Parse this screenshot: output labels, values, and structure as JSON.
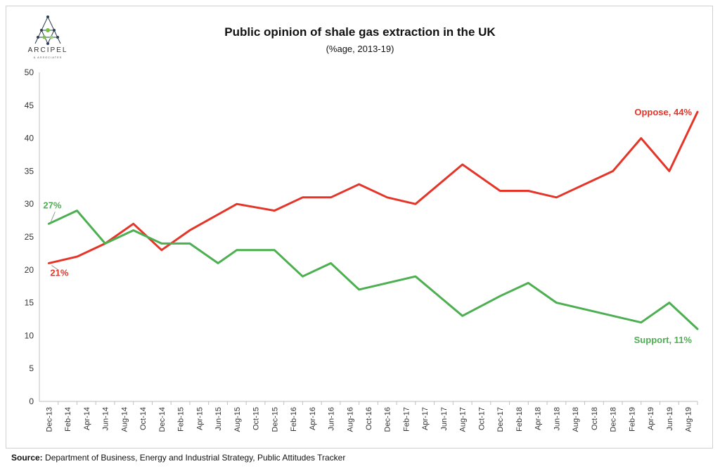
{
  "header": {
    "logo_name": "ARCIPEL",
    "logo_sub": "& ASSOCIATES"
  },
  "chart_data": {
    "type": "line",
    "title": "Public opinion of shale gas extraction in the UK",
    "subtitle": "(%age, 2013-19)",
    "xlabel": "",
    "ylabel": "",
    "ylim": [
      0,
      50
    ],
    "yticks": [
      0,
      5,
      10,
      15,
      20,
      25,
      30,
      35,
      40,
      45,
      50
    ],
    "grid": false,
    "categories": [
      "Dec-13",
      "Feb-14",
      "Apr-14",
      "Jun-14",
      "Aug-14",
      "Oct-14",
      "Dec-14",
      "Feb-15",
      "Apr-15",
      "Jun-15",
      "Aug-15",
      "Oct-15",
      "Dec-15",
      "Feb-16",
      "Apr-16",
      "Jun-16",
      "Aug-16",
      "Oct-16",
      "Dec-16",
      "Feb-17",
      "Apr-17",
      "Jun-17",
      "Aug-17",
      "Oct-17",
      "Dec-17",
      "Feb-18",
      "Apr-18",
      "Jun-18",
      "Aug-18",
      "Oct-18",
      "Dec-18",
      "Feb-19",
      "Apr-19",
      "Jun-19",
      "Aug-19"
    ],
    "series": [
      {
        "name": "Oppose",
        "color": "#e53528",
        "x": [
          "Dec-13",
          "Mar-14",
          "Jun-14",
          "Sep-14",
          "Dec-14",
          "Mar-15",
          "Aug-15",
          "Dec-15",
          "Mar-16",
          "Jun-16",
          "Sep-16",
          "Dec-16",
          "Mar-17",
          "Aug-17",
          "Dec-17",
          "Mar-18",
          "Jun-18",
          "Dec-18",
          "Mar-19",
          "Jun-19",
          "Sep-19"
        ],
        "values": [
          21,
          22,
          24,
          27,
          23,
          26,
          30,
          29,
          31,
          31,
          33,
          31,
          30,
          36,
          32,
          32,
          31,
          35,
          40,
          35,
          44
        ],
        "start_label": "21%",
        "end_label": "Oppose, 44%"
      },
      {
        "name": "Support",
        "color": "#4caf50",
        "x": [
          "Dec-13",
          "Mar-14",
          "Jun-14",
          "Sep-14",
          "Dec-14",
          "Mar-15",
          "Jun-15",
          "Aug-15",
          "Dec-15",
          "Mar-16",
          "Jun-16",
          "Sep-16",
          "Mar-17",
          "Aug-17",
          "Dec-17",
          "Mar-18",
          "Jun-18",
          "Mar-19",
          "Jun-19",
          "Sep-19"
        ],
        "values": [
          27,
          29,
          24,
          26,
          24,
          24,
          21,
          23,
          23,
          19,
          21,
          17,
          19,
          13,
          16,
          18,
          15,
          12,
          15,
          11
        ],
        "start_label": "27%",
        "end_label": "Support, 11%"
      }
    ]
  },
  "footer": {
    "source_label": "Source:",
    "source_text": "Department of Business, Energy and Industrial Strategy, Public Attitudes Tracker"
  }
}
